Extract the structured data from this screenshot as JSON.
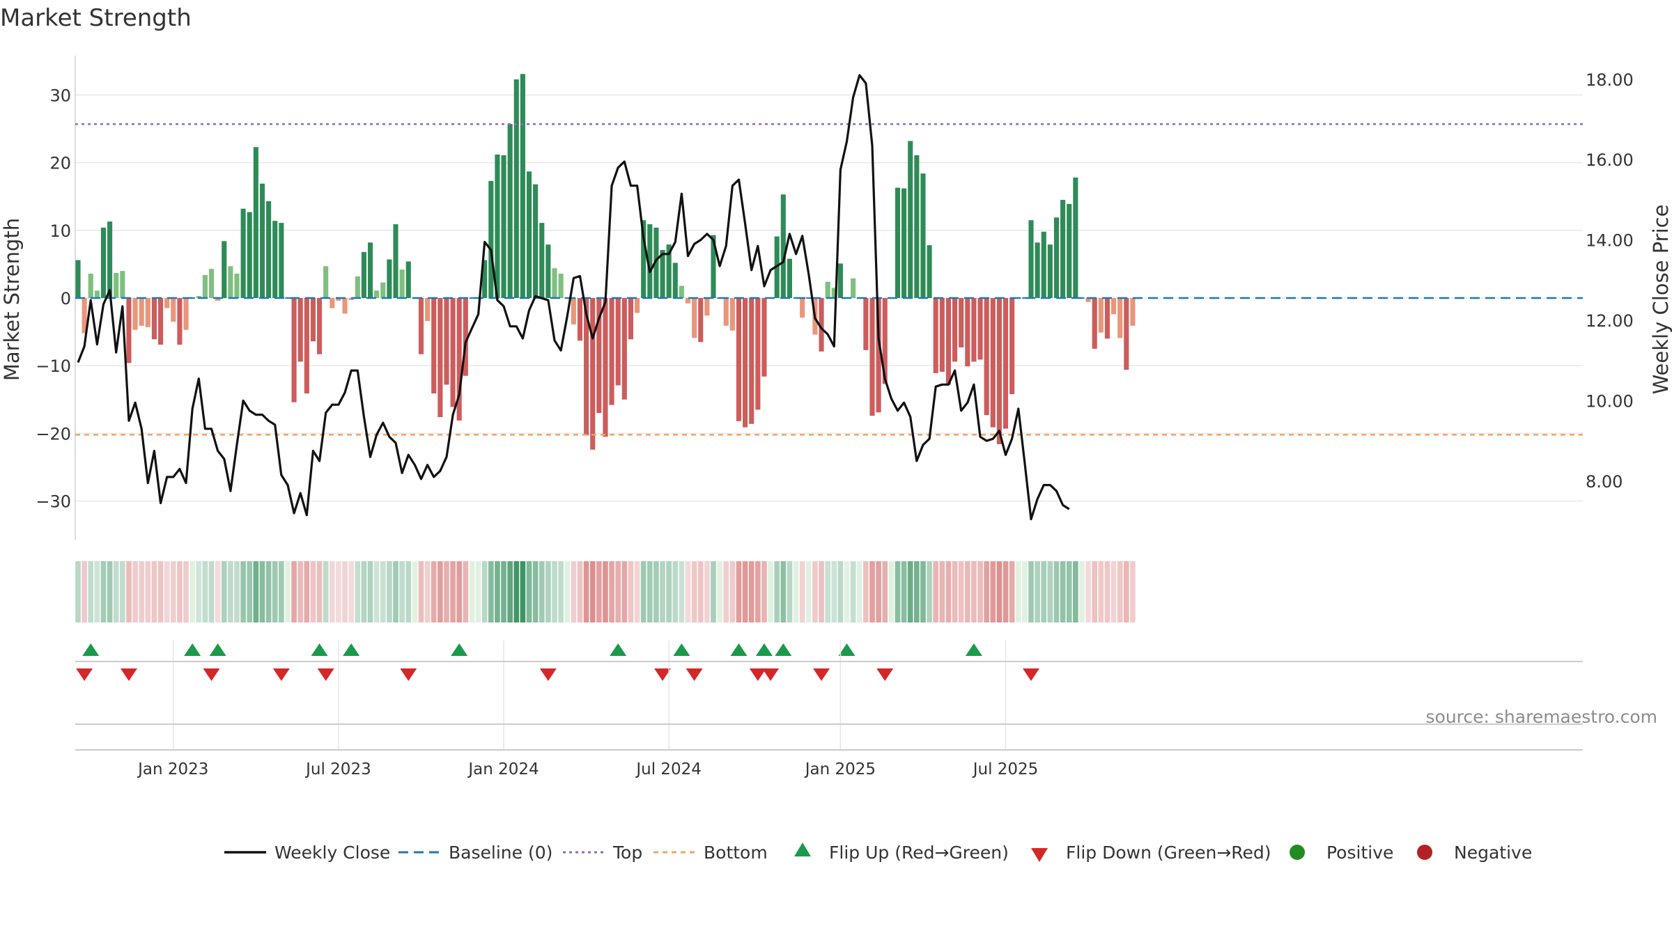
{
  "chart_data": {
    "type": "bar",
    "title": "Market Strength",
    "ylabel": "Market Strength",
    "ylabel_right": "Weekly Close Price",
    "ylim": [
      -35.5,
      35.5
    ],
    "ylim_right": [
      6.3,
      18.6
    ],
    "yticks": [
      30,
      20,
      10,
      0,
      -10,
      -20,
      -30
    ],
    "yticks_right": [
      18,
      16,
      14,
      12,
      10,
      8
    ],
    "yticklabels": [
      "30",
      "20",
      "10",
      "0",
      "−10",
      "−20",
      "−30"
    ],
    "yticklabels_right": [
      "18.00",
      "16.00",
      "14.00",
      "12.00",
      "10.00",
      "8.00"
    ],
    "x_ticks": [
      {
        "label": "Jan 2023",
        "week": 15
      },
      {
        "label": "Jul 2023",
        "week": 41
      },
      {
        "label": "Jan 2024",
        "week": 67
      },
      {
        "label": "Jul 2024",
        "week": 93
      },
      {
        "label": "Jan 2025",
        "week": 120
      },
      {
        "label": "Jul 2025",
        "week": 146
      }
    ],
    "top_line": 25.7,
    "bottom_line": -20.2,
    "baseline": 0,
    "strength": [
      5.6,
      -5.2,
      3.6,
      1.1,
      10.4,
      11.3,
      3.7,
      4.0,
      -9.6,
      -4.7,
      -4.1,
      -4.3,
      -6.1,
      -6.9,
      -1.5,
      -3.5,
      -6.9,
      -4.7,
      0,
      0.3,
      3.4,
      4.3,
      -0.4,
      8.4,
      4.7,
      3.6,
      13.2,
      12.7,
      22.3,
      16.9,
      14.3,
      11.4,
      11.1,
      0,
      -15.4,
      -9.4,
      -14.1,
      -6.4,
      -8.3,
      4.7,
      -1.5,
      -0.4,
      -2.3,
      -0.3,
      3.2,
      6.8,
      8.2,
      1.1,
      2.3,
      5.7,
      10.9,
      4.2,
      5.4,
      0,
      -8.3,
      -3.4,
      -14.1,
      -17.6,
      -12.8,
      -16.1,
      -18.1,
      -11.5,
      0,
      0,
      5.6,
      17.3,
      21.2,
      21.1,
      25.7,
      32.3,
      33.1,
      18.7,
      16.8,
      11.1,
      7.9,
      4.4,
      3.6,
      0,
      -3.9,
      -6.3,
      -20.3,
      -22.4,
      -17.0,
      -20.5,
      -15.8,
      -12.9,
      -15.0,
      -6.1,
      -2.2,
      11.5,
      10.9,
      10.4,
      7.1,
      7.9,
      5.2,
      1.8,
      -0.8,
      -5.9,
      -6.5,
      -2.6,
      9.3,
      0,
      -4.1,
      -4.8,
      -18.2,
      -19.1,
      -18.6,
      -16.5,
      -11.6,
      0,
      9.1,
      15.3,
      5.8,
      0,
      -2.9,
      0,
      -5.4,
      -7.9,
      2.4,
      1.5,
      5.1,
      0,
      2.9,
      0,
      -7.7,
      -17.4,
      -16.9,
      -12.7,
      0,
      16.3,
      16.2,
      23.2,
      21.1,
      18.4,
      7.8,
      -11.1,
      -10.9,
      -12.8,
      -9.4,
      -7.3,
      -10.1,
      -9.4,
      -9.1,
      -17.3,
      -19.1,
      -21.6,
      -19.3,
      -14.2,
      0,
      0,
      11.5,
      8.2,
      9.8,
      7.9,
      11.9,
      14.5,
      13.9,
      17.8,
      0,
      -0.6,
      -7.5,
      -5.1,
      -6.0,
      -2.4,
      -5.9,
      -10.6,
      -4.1
    ],
    "weekly_close": [
      10.95,
      11.35,
      12.5,
      11.4,
      12.4,
      12.75,
      11.2,
      12.35,
      9.5,
      9.95,
      9.3,
      7.95,
      8.75,
      7.45,
      8.1,
      8.1,
      8.3,
      7.95,
      9.8,
      10.55,
      9.3,
      9.3,
      8.75,
      8.55,
      7.75,
      8.9,
      10.0,
      9.75,
      9.65,
      9.65,
      9.5,
      9.4,
      8.15,
      7.9,
      7.2,
      7.7,
      7.15,
      8.75,
      8.5,
      9.7,
      9.9,
      9.9,
      10.2,
      10.75,
      10.75,
      9.6,
      8.6,
      9.15,
      9.45,
      9.1,
      8.95,
      8.2,
      8.65,
      8.4,
      8.05,
      8.4,
      8.1,
      8.25,
      8.6,
      9.65,
      10.15,
      11.45,
      11.8,
      12.15,
      13.95,
      13.75,
      12.5,
      12.35,
      11.85,
      11.85,
      11.55,
      12.25,
      12.6,
      12.55,
      12.5,
      11.5,
      11.25,
      12.1,
      13.05,
      13.1,
      12.15,
      11.55,
      12.05,
      12.45,
      15.35,
      15.8,
      15.95,
      15.35,
      15.35,
      14.05,
      13.2,
      13.5,
      13.65,
      13.65,
      13.95,
      15.15,
      13.6,
      13.9,
      14.0,
      14.15,
      14.0,
      13.35,
      13.85,
      15.35,
      15.5,
      14.4,
      13.25,
      13.85,
      12.85,
      13.25,
      13.35,
      13.45,
      14.15,
      13.65,
      14.1,
      13.15,
      12.05,
      11.8,
      11.65,
      11.35,
      15.75,
      16.45,
      17.55,
      18.1,
      17.9,
      16.35,
      11.55,
      10.55,
      10.05,
      9.75,
      9.95,
      9.6,
      8.5,
      8.9,
      9.05,
      10.35,
      10.4,
      10.4,
      10.75,
      9.75,
      9.95,
      10.4,
      9.1,
      9.0,
      9.05,
      9.25,
      8.65,
      9.05,
      9.8,
      8.45,
      7.05,
      7.55,
      7.9,
      7.9,
      7.75,
      7.4,
      7.3
    ],
    "flips_up": [
      2,
      18,
      22,
      38,
      43,
      60,
      85,
      95,
      104,
      108,
      111,
      121,
      141
    ],
    "flips_down": [
      1,
      8,
      21,
      32,
      39,
      52,
      74,
      92,
      97,
      107,
      109,
      117,
      127,
      150
    ],
    "source_note": "source: sharemaestro.com",
    "legend": [
      "Weekly Close",
      "Baseline (0)",
      "Top",
      "Bottom",
      "Flip Up (Red→Green)",
      "Flip Down (Green→Red)",
      "Positive",
      "Negative"
    ],
    "colors": {
      "pos_strong": "#2e8b57",
      "pos_weak": "#7fbf7f",
      "neg_strong": "#cd5c5c",
      "neg_weak": "#e9967a",
      "top": "#9467bd",
      "bottom": "#f4a460",
      "baseline": "#1f77b4",
      "line": "#111111",
      "flip_up": "#1a9a4a",
      "flip_down": "#d62728",
      "positive": "#228b22",
      "negative": "#b22222",
      "grid": "#e8e8e8",
      "axis_text": "#333333"
    }
  }
}
